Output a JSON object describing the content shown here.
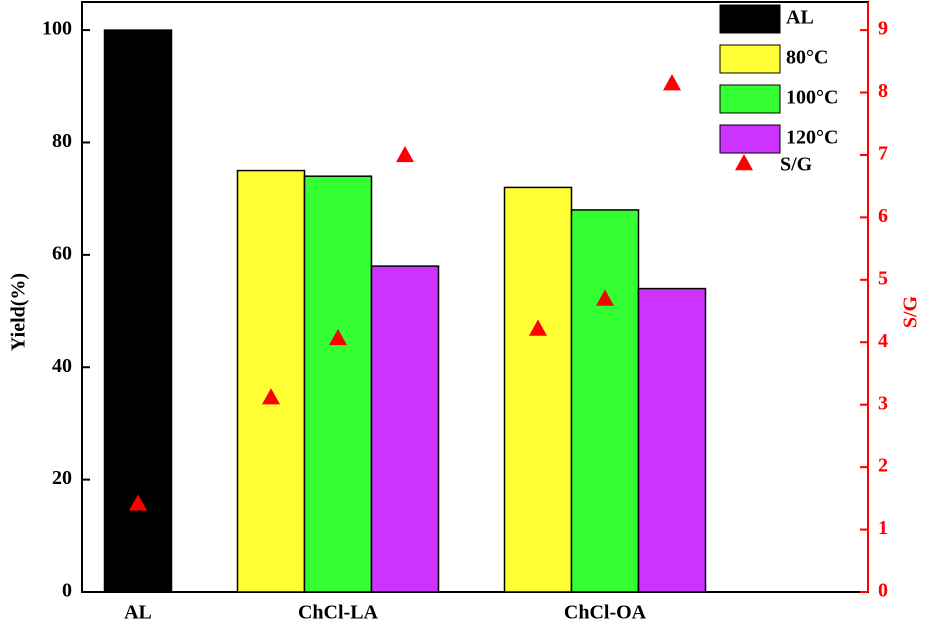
{
  "chart_data": {
    "type": "bar",
    "y_label": "Yield(%)",
    "y2_label": "S/G",
    "categories": [
      "AL",
      "ChCl-LA",
      "ChCl-OA"
    ],
    "series": [
      {
        "name": "AL",
        "color": "#000000",
        "values": [
          100,
          null,
          null
        ]
      },
      {
        "name": "80°C",
        "color": "#ffff33",
        "values": [
          null,
          75,
          72
        ]
      },
      {
        "name": "100°C",
        "color": "#33ff33",
        "values": [
          null,
          74,
          68
        ]
      },
      {
        "name": "120°C",
        "color": "#cc33ff",
        "values": [
          null,
          58,
          54
        ]
      },
      {
        "name": "S/G",
        "type": "scatter",
        "axis": "y2",
        "color": "#ff0000",
        "values": [
          1.42,
          3.12,
          4.07,
          7.0,
          4.22,
          4.7,
          8.15
        ]
      }
    ],
    "ylim": [
      0,
      105
    ],
    "yticks": [
      0,
      20,
      40,
      60,
      80,
      100
    ],
    "y2lim": [
      0,
      9.45
    ],
    "y2ticks": [
      0,
      1,
      2,
      3,
      4,
      5,
      6,
      7,
      8,
      9
    ],
    "y2_color": "#ff0000"
  }
}
